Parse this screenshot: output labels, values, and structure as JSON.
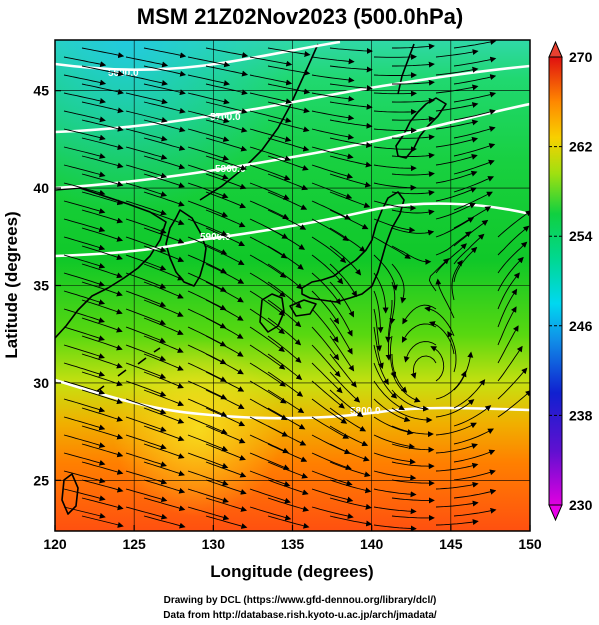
{
  "figure": {
    "title": "MSM 21Z02Nov2023 (500.0hPa)",
    "xlabel": "Longitude (degrees)",
    "ylabel": "Latitude  (degrees)",
    "credit_line1": "Drawing by DCL (https://www.gfd-dennou.org/library/dcl/)",
    "credit_line2": "Data from http://database.rish.kyoto-u.ac.jp/arch/jmadata/"
  },
  "map": {
    "xlim": [
      120,
      150
    ],
    "ylim": [
      22.4,
      47.6
    ],
    "x_ticks": [
      "120",
      "125",
      "130",
      "135",
      "140",
      "145",
      "150"
    ],
    "y_ticks": [
      "25",
      "30",
      "35",
      "40",
      "45"
    ],
    "grid": true,
    "contour_labels": [
      "5600.0",
      "5700.0",
      "5800.0",
      "5900.0",
      "5800.0"
    ],
    "vectors": "wind streamlines with arrowheads (eastward flow, cyclonic eddy near 143E 31N)"
  },
  "colorbar": {
    "min": 230,
    "max": 270,
    "tick_labels": [
      "270",
      "262",
      "254",
      "246",
      "238",
      "230"
    ],
    "colors": {
      "magenta": "#e000e0",
      "blue": "#1020d0",
      "cyan": "#00d8f0",
      "green": "#10d040",
      "yellow_green": "#a0e010",
      "orange": "#ff8800",
      "red": "#e01010"
    }
  }
}
